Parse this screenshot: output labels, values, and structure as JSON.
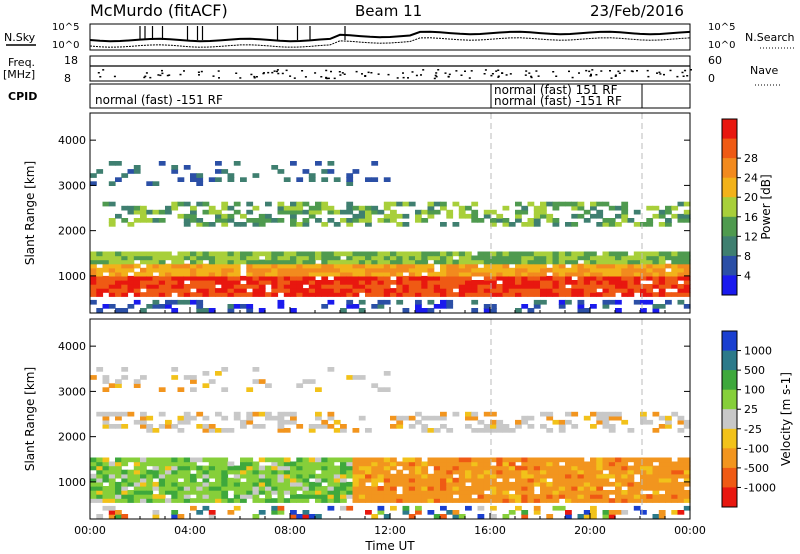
{
  "header": {
    "station": "McMurdo (fitACF)",
    "beam": "Beam 11",
    "date": "23/Feb/2016"
  },
  "noise_panel": {
    "left_label": "N.Sky",
    "left_ticks": [
      "10^5",
      "10^0"
    ],
    "right_ticks": [
      "10^5",
      "10^0"
    ],
    "right_label": "N.Search"
  },
  "freq_panel": {
    "left_label": "Freq.",
    "left_unit": "[MHz]",
    "left_ticks": [
      "18",
      "8"
    ],
    "right_ticks": [
      "60",
      "0"
    ],
    "right_label": "Nave"
  },
  "cpid_panel": {
    "label": "CPID",
    "segments": [
      "normal (fast) -151 RF",
      "normal (fast) 151 RF",
      "normal (fast) -151 RF"
    ]
  },
  "chart_data": [
    {
      "type": "heatmap",
      "parameter": "Power",
      "ylabel": "Slant Range [km]",
      "xlabel": "",
      "yticks": [
        1000,
        2000,
        3000,
        4000
      ],
      "ylim": [
        180,
        4600
      ],
      "colorbar_label": "Power [dB]",
      "colorbar_ticks": [
        4,
        8,
        12,
        16,
        20,
        24,
        28
      ],
      "colorbar_colors": [
        "#1a1aee",
        "#2b4fa6",
        "#3f7f70",
        "#4f9a4f",
        "#a8cf3a",
        "#f2b21a",
        "#f28a1e",
        "#ef5a14",
        "#e8170f"
      ],
      "bands": [
        {
          "range_km": [
            550,
            1500
          ],
          "level": "high",
          "hours": [
            0,
            24
          ]
        },
        {
          "range_km": [
            2100,
            2600
          ],
          "level": "medium",
          "hours": [
            0.5,
            24
          ]
        },
        {
          "range_km": [
            3000,
            3500
          ],
          "level": "low",
          "hours": [
            0,
            12
          ]
        }
      ]
    },
    {
      "type": "heatmap",
      "parameter": "Velocity",
      "ylabel": "Slant Range [km]",
      "xlabel": "Time UT",
      "yticks": [
        1000,
        2000,
        3000,
        4000
      ],
      "xticks": [
        "00:00",
        "04:00",
        "08:00",
        "12:00",
        "16:00",
        "20:00",
        "00:00"
      ],
      "ylim": [
        180,
        4600
      ],
      "colorbar_label": "Velocity [m s-1]",
      "colorbar_ticks": [
        "1000",
        "500",
        "100",
        "25",
        "-25",
        "-100",
        "-500",
        "-1000"
      ],
      "colorbar_colors": [
        "#1a3fd0",
        "#2c7a8a",
        "#3ea83c",
        "#86cf3a",
        "#c8c8c8",
        "#f2c21a",
        "#f2951e",
        "#ef5a14",
        "#e8170f"
      ],
      "bands": [
        {
          "range_km": [
            550,
            1500
          ],
          "hours": [
            0,
            10.5
          ],
          "velocity": "100 to 500"
        },
        {
          "range_km": [
            550,
            1500
          ],
          "hours": [
            10.5,
            24
          ],
          "velocity": "-100 to -500"
        },
        {
          "range_km": [
            2100,
            2500
          ],
          "hours": [
            0,
            24
          ],
          "velocity": "-25 to 25"
        }
      ]
    }
  ],
  "colors": {
    "axis": "#000000",
    "guide": "#bbbbbb"
  }
}
